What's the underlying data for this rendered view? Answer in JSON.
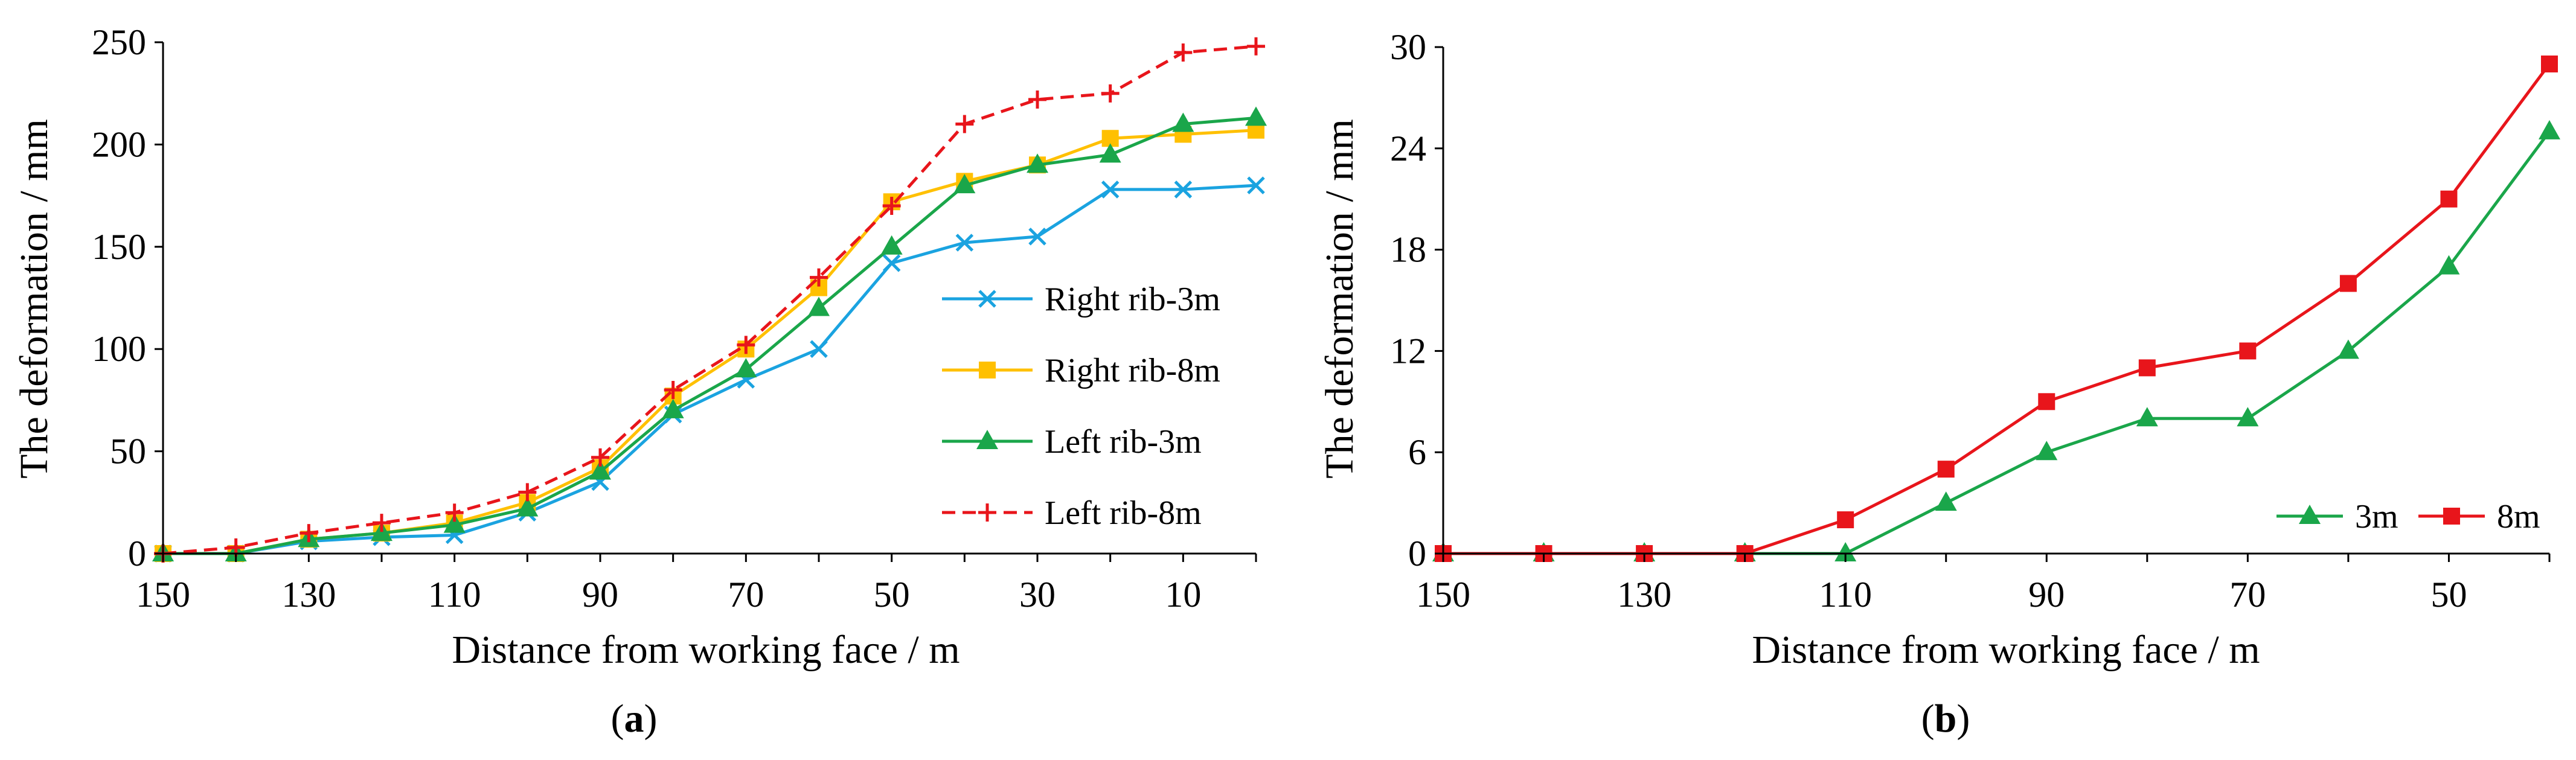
{
  "chart_data": [
    {
      "type": "line",
      "panel_label": {
        "open": "(",
        "letter": "a",
        "close": ")"
      },
      "xlabel": "Distance from working face / m",
      "ylabel": "The deformation / mm",
      "xlim": [
        150,
        0
      ],
      "ylim": [
        0,
        250
      ],
      "x_ticks": [
        150,
        130,
        110,
        90,
        70,
        50,
        30,
        10
      ],
      "y_ticks": [
        0,
        50,
        100,
        150,
        200,
        250
      ],
      "grid": false,
      "legend_position": "right",
      "x": [
        150,
        140,
        130,
        120,
        110,
        100,
        90,
        80,
        70,
        60,
        50,
        40,
        30,
        20,
        10,
        0
      ],
      "series": [
        {
          "name": "Right rib-3m",
          "color": "#1aa3e0",
          "marker": "x",
          "dash": "solid",
          "values": [
            0,
            0,
            6,
            8,
            9,
            20,
            35,
            68,
            85,
            100,
            142,
            152,
            155,
            178,
            178,
            180
          ]
        },
        {
          "name": "Right rib-8m",
          "color": "#ffc000",
          "marker": "square",
          "dash": "solid",
          "values": [
            0,
            0,
            7,
            10,
            15,
            25,
            42,
            77,
            100,
            130,
            172,
            182,
            190,
            203,
            205,
            207
          ]
        },
        {
          "name": "Left rib-3m",
          "color": "#1aa64a",
          "marker": "triangle",
          "dash": "solid",
          "values": [
            0,
            0,
            7,
            10,
            14,
            22,
            40,
            70,
            90,
            120,
            150,
            180,
            190,
            195,
            210,
            213
          ]
        },
        {
          "name": "Left rib-8m",
          "color": "#e8151b",
          "marker": "plus",
          "dash": "dashed",
          "values": [
            0,
            3,
            10,
            15,
            20,
            30,
            47,
            80,
            102,
            135,
            170,
            210,
            222,
            225,
            245,
            248
          ]
        }
      ]
    },
    {
      "type": "line",
      "panel_label": {
        "open": "(",
        "letter": "b",
        "close": ")"
      },
      "xlabel": "Distance from working face / m",
      "ylabel": "The deformation / mm",
      "xlim": [
        150,
        40
      ],
      "ylim": [
        0,
        30
      ],
      "x_ticks": [
        150,
        130,
        110,
        90,
        70,
        50
      ],
      "y_ticks": [
        0,
        6,
        12,
        18,
        24,
        30
      ],
      "grid": false,
      "legend_position": "bottom-right",
      "x": [
        150,
        140,
        130,
        120,
        110,
        100,
        90,
        80,
        70,
        60,
        50,
        40
      ],
      "series": [
        {
          "name": "3m",
          "color": "#1aa64a",
          "marker": "triangle",
          "dash": "solid",
          "values": [
            0,
            0,
            0,
            0,
            0,
            3,
            6,
            8,
            8,
            12,
            17,
            25
          ]
        },
        {
          "name": "8m",
          "color": "#e8151b",
          "marker": "square",
          "dash": "solid",
          "values": [
            0,
            0,
            0,
            0,
            2,
            5,
            9,
            11,
            12,
            16,
            21,
            29
          ]
        }
      ]
    }
  ]
}
